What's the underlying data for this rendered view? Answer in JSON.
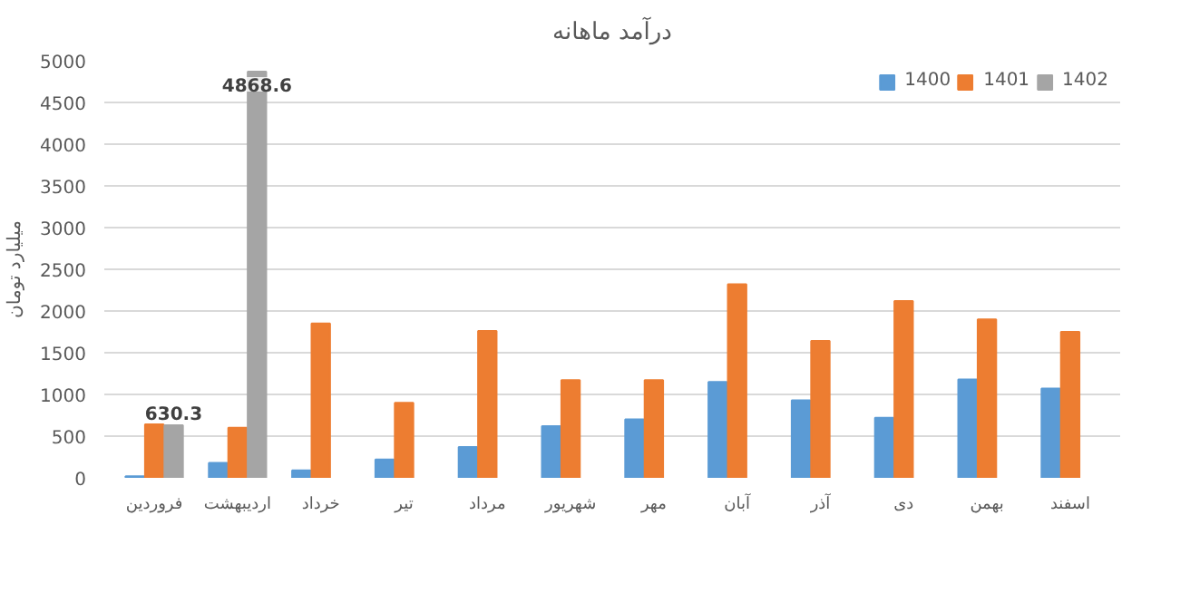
{
  "chart_data": {
    "type": "bar",
    "title": "درآمد ماهانه",
    "ylabel": "میلیارد تومان",
    "categories": [
      "فروردین",
      "اردیبهشت",
      "خرداد",
      "تیر",
      "مرداد",
      "شهریور",
      "مهر",
      "آبان",
      "آذر",
      "دی",
      "بهمن",
      "اسفند"
    ],
    "series": [
      {
        "name": "1400",
        "color": "#5b9bd5",
        "values": [
          20,
          180,
          90,
          220,
          370,
          620,
          700,
          1150,
          930,
          720,
          1180,
          1070
        ]
      },
      {
        "name": "1401",
        "color": "#ed7d31",
        "values": [
          640,
          600,
          1850,
          900,
          1760,
          1170,
          1170,
          2320,
          1640,
          2120,
          1900,
          1750
        ]
      },
      {
        "name": "1402",
        "color": "#a5a5a5",
        "values": [
          630.3,
          4868.6,
          null,
          null,
          null,
          null,
          null,
          null,
          null,
          null,
          null,
          null
        ],
        "value_labels": [
          "630.3",
          "4868.6",
          null,
          null,
          null,
          null,
          null,
          null,
          null,
          null,
          null,
          null
        ]
      }
    ],
    "ylim": [
      0,
      5000
    ],
    "yticks": [
      0,
      500,
      1000,
      1500,
      2000,
      2500,
      3000,
      3500,
      4000,
      4500,
      5000
    ],
    "grid": "y",
    "legend": "top right"
  }
}
